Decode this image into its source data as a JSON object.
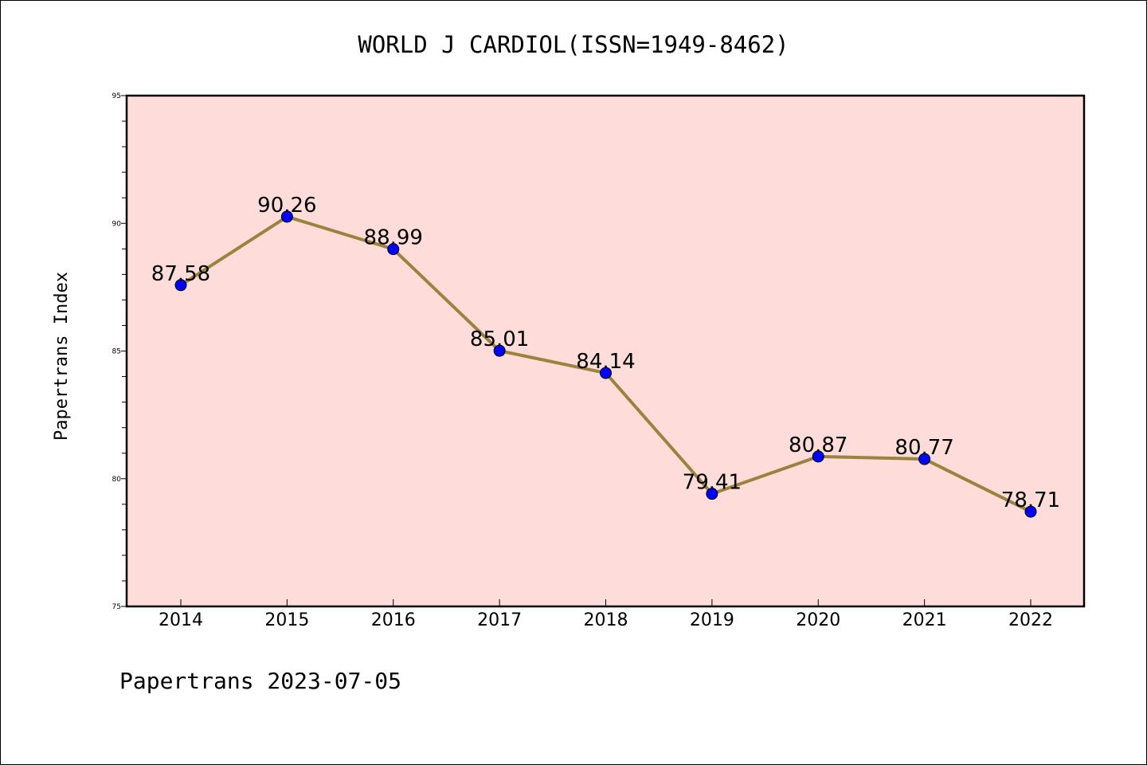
{
  "chart_data": {
    "type": "line",
    "title": "WORLD J CARDIOL(ISSN=1949-8462)",
    "ylabel": "Papertrans Index",
    "xlabel": "",
    "footer": "Papertrans 2023-07-05",
    "categories": [
      "2014",
      "2015",
      "2016",
      "2017",
      "2018",
      "2019",
      "2020",
      "2021",
      "2022"
    ],
    "values": [
      87.58,
      90.26,
      88.99,
      85.01,
      84.14,
      79.41,
      80.87,
      80.77,
      78.71
    ],
    "data_labels": [
      "87.58",
      "90.26",
      "88.99",
      "85.01",
      "84.14",
      "79.41",
      "80.87",
      "80.77",
      "78.71"
    ],
    "ylim": [
      75,
      95
    ],
    "yticks": [
      "75",
      "80",
      "85",
      "90",
      "95"
    ],
    "grid": false,
    "colors": {
      "plot_background": "#fddcd9",
      "line": "#9b823d",
      "marker": "#0000ff"
    }
  }
}
